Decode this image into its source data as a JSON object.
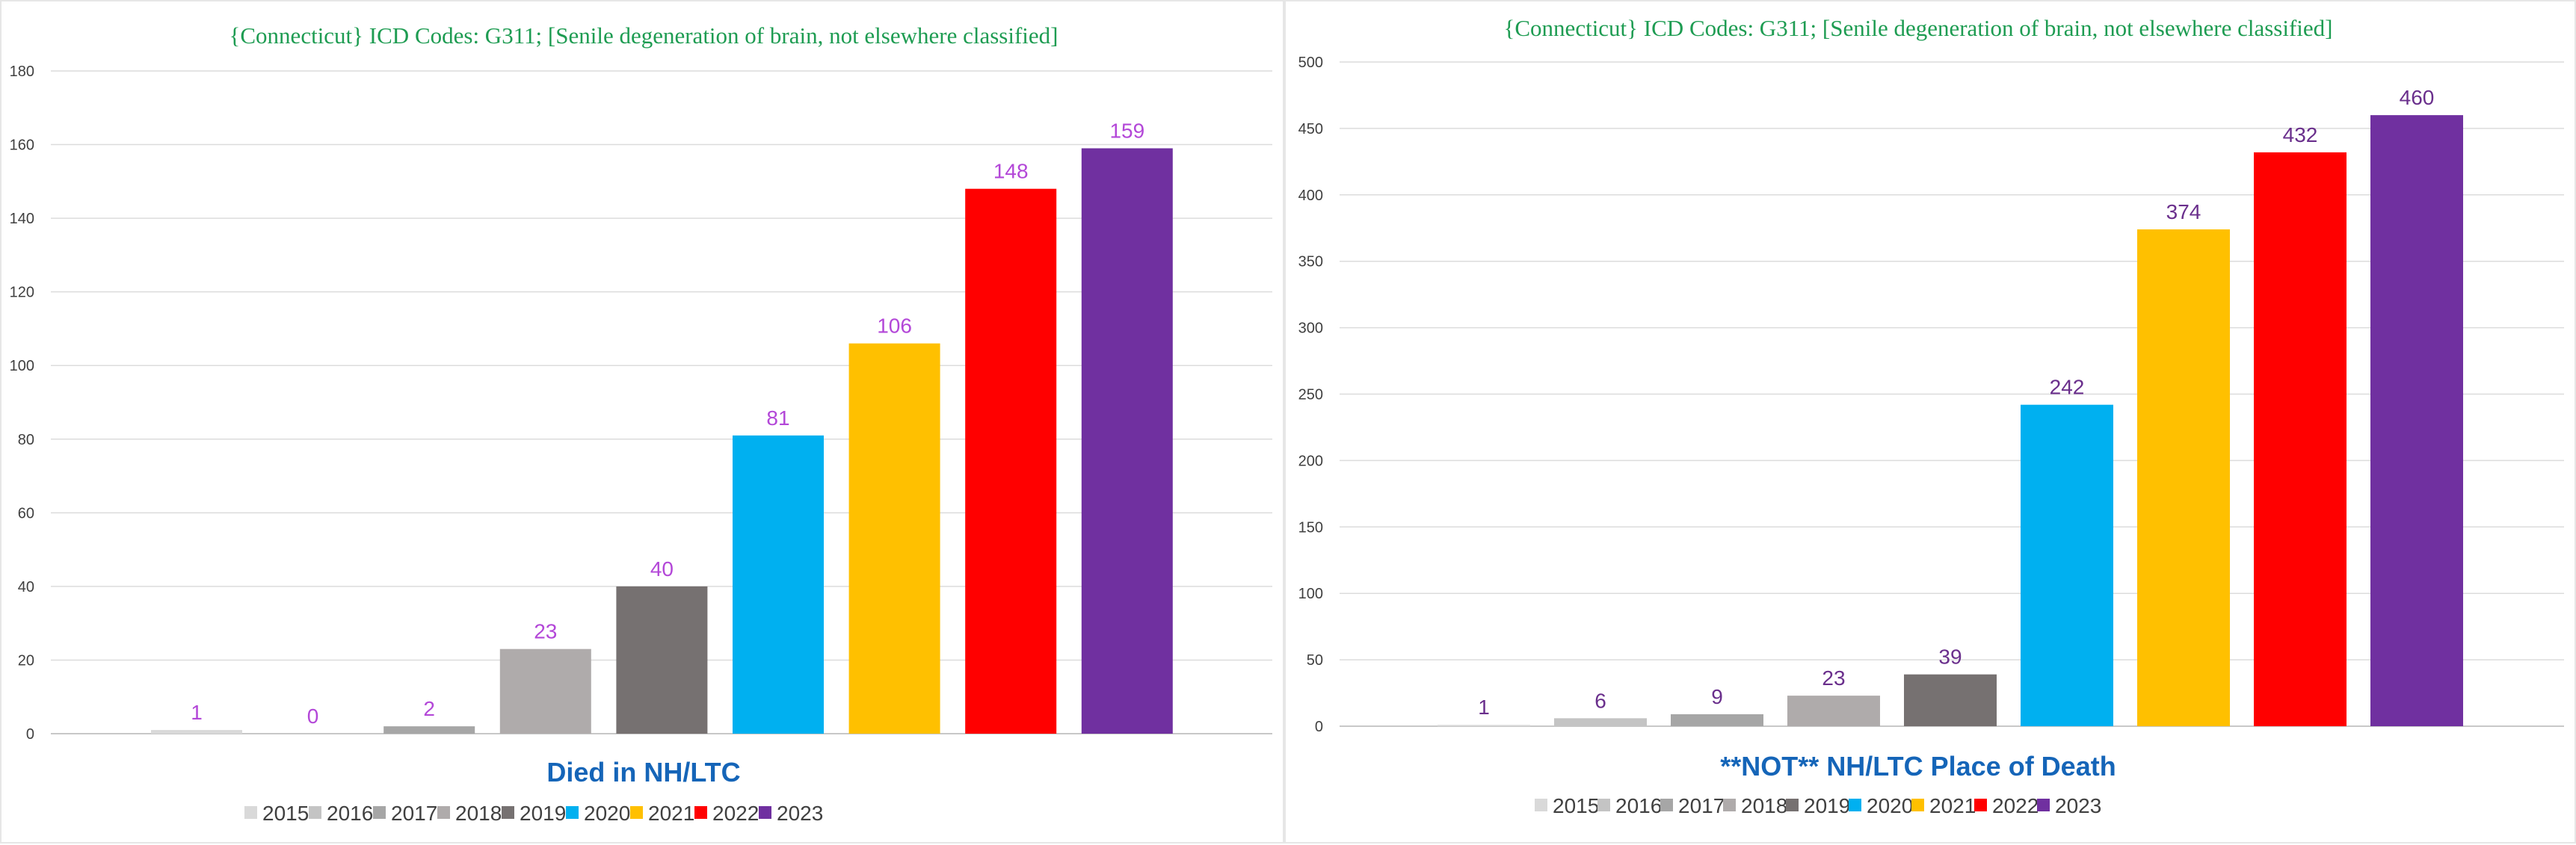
{
  "chart_data": [
    {
      "type": "bar",
      "title": "{Connecticut}   ICD Codes: G311;  [Senile degeneration of brain, not elsewhere classified]",
      "xlabel": "Died in NH/LTC",
      "ylabel": "",
      "categories": [
        "2015",
        "2016",
        "2017",
        "2018",
        "2019",
        "2020",
        "2021",
        "2022",
        "2023"
      ],
      "values": [
        1,
        0,
        2,
        23,
        40,
        81,
        106,
        148,
        159
      ],
      "ylim": [
        0,
        180
      ],
      "yticks": [
        "0",
        "20",
        "40",
        "60",
        "80",
        "100",
        "120",
        "140",
        "160",
        "180"
      ],
      "colors": [
        "#d9d9d9",
        "#c4c4c4",
        "#a6a6a6",
        "#afabab",
        "#767171",
        "#00b0f0",
        "#ffc000",
        "#ff0000",
        "#7030a0"
      ],
      "data_label_color": "#b347d8",
      "legend": [
        "2015",
        "2016",
        "2017",
        "2018",
        "2019",
        "2020",
        "2021",
        "2022",
        "2023"
      ],
      "legend_position": "bottom",
      "grid": true
    },
    {
      "type": "bar",
      "title": "{Connecticut}   ICD Codes: G311;  [Senile degeneration of brain, not elsewhere classified]",
      "xlabel": "**NOT** NH/LTC Place of Death",
      "ylabel": "",
      "categories": [
        "2015",
        "2016",
        "2017",
        "2018",
        "2019",
        "2020",
        "2021",
        "2022",
        "2023"
      ],
      "values": [
        1,
        6,
        9,
        23,
        39,
        242,
        374,
        432,
        460
      ],
      "ylim": [
        0,
        500
      ],
      "yticks": [
        "0",
        "50",
        "100",
        "150",
        "200",
        "250",
        "300",
        "350",
        "400",
        "450",
        "500"
      ],
      "colors": [
        "#d9d9d9",
        "#c4c4c4",
        "#a6a6a6",
        "#afabab",
        "#767171",
        "#00b0f0",
        "#ffc000",
        "#ff0000",
        "#7030a0"
      ],
      "data_label_color": "#6a2f8c",
      "legend": [
        "2015",
        "2016",
        "2017",
        "2018",
        "2019",
        "2020",
        "2021",
        "2022",
        "2023"
      ],
      "legend_position": "bottom",
      "grid": true
    }
  ]
}
